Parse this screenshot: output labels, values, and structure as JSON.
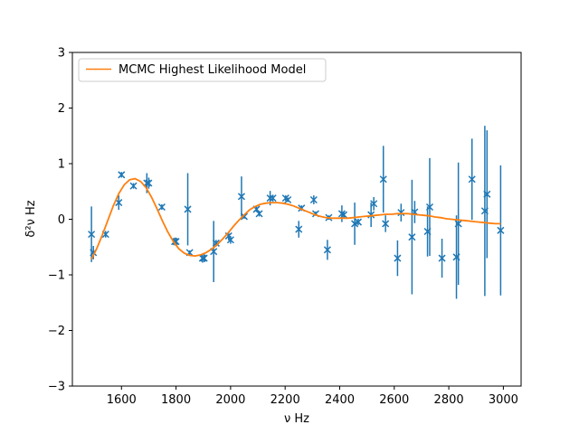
{
  "chart_data": {
    "type": "scatter",
    "title": "",
    "xlabel": "ν Hz",
    "ylabel": "δ²ν Hz",
    "xlim": [
      1420,
      3065
    ],
    "ylim": [
      -3,
      3
    ],
    "x_ticks": [
      1600,
      1800,
      2000,
      2200,
      2400,
      2600,
      2800,
      3000
    ],
    "y_ticks": [
      -3,
      -2,
      -1,
      0,
      1,
      2,
      3
    ],
    "grid": false,
    "legend_position": "upper-left",
    "colors": {
      "points": "#1f77b4",
      "model": "#ff7f0e"
    },
    "series": [
      {
        "kind": "errorbar",
        "points": [
          {
            "x": 1490,
            "y": -0.27,
            "err": 0.5
          },
          {
            "x": 1497,
            "y": -0.6,
            "err": 0.12
          },
          {
            "x": 1542,
            "y": -0.27,
            "err": 0.06
          },
          {
            "x": 1590,
            "y": 0.3,
            "err": 0.13
          },
          {
            "x": 1600,
            "y": 0.8,
            "err": 0.05
          },
          {
            "x": 1644,
            "y": 0.6,
            "err": 0.05
          },
          {
            "x": 1693,
            "y": 0.65,
            "err": 0.18
          },
          {
            "x": 1700,
            "y": 0.65,
            "err": 0.1
          },
          {
            "x": 1748,
            "y": 0.22,
            "err": 0.05
          },
          {
            "x": 1795,
            "y": -0.4,
            "err": 0.07
          },
          {
            "x": 1800,
            "y": -0.4,
            "err": 0.07
          },
          {
            "x": 1843,
            "y": 0.18,
            "err": 0.65
          },
          {
            "x": 1850,
            "y": -0.6,
            "err": 0.04
          },
          {
            "x": 1897,
            "y": -0.7,
            "err": 0.08
          },
          {
            "x": 1903,
            "y": -0.7,
            "err": 0.07
          },
          {
            "x": 1938,
            "y": -0.58,
            "err": 0.55
          },
          {
            "x": 1947,
            "y": -0.43,
            "err": 0.06
          },
          {
            "x": 1993,
            "y": -0.3,
            "err": 0.08
          },
          {
            "x": 2000,
            "y": -0.37,
            "err": 0.07
          },
          {
            "x": 2040,
            "y": 0.41,
            "err": 0.36
          },
          {
            "x": 2050,
            "y": 0.05,
            "err": 0.04
          },
          {
            "x": 2095,
            "y": 0.18,
            "err": 0.05
          },
          {
            "x": 2105,
            "y": 0.1,
            "err": 0.05
          },
          {
            "x": 2145,
            "y": 0.38,
            "err": 0.13
          },
          {
            "x": 2155,
            "y": 0.38,
            "err": 0.06
          },
          {
            "x": 2202,
            "y": 0.38,
            "err": 0.05
          },
          {
            "x": 2210,
            "y": 0.35,
            "err": 0.04
          },
          {
            "x": 2250,
            "y": -0.18,
            "err": 0.15
          },
          {
            "x": 2260,
            "y": 0.2,
            "err": 0.05
          },
          {
            "x": 2305,
            "y": 0.35,
            "err": 0.08
          },
          {
            "x": 2312,
            "y": 0.1,
            "err": 0.04
          },
          {
            "x": 2355,
            "y": -0.55,
            "err": 0.18
          },
          {
            "x": 2360,
            "y": 0.03,
            "err": 0.04
          },
          {
            "x": 2408,
            "y": 0.1,
            "err": 0.15
          },
          {
            "x": 2415,
            "y": 0.08,
            "err": 0.06
          },
          {
            "x": 2455,
            "y": -0.08,
            "err": 0.38
          },
          {
            "x": 2468,
            "y": -0.05,
            "err": 0.06
          },
          {
            "x": 2515,
            "y": 0.08,
            "err": 0.22
          },
          {
            "x": 2525,
            "y": 0.28,
            "err": 0.12
          },
          {
            "x": 2560,
            "y": 0.72,
            "err": 0.6
          },
          {
            "x": 2568,
            "y": -0.08,
            "err": 0.15
          },
          {
            "x": 2612,
            "y": -0.7,
            "err": 0.32
          },
          {
            "x": 2625,
            "y": 0.12,
            "err": 0.16
          },
          {
            "x": 2665,
            "y": -0.32,
            "err": 1.03
          },
          {
            "x": 2675,
            "y": 0.13,
            "err": 0.2
          },
          {
            "x": 2722,
            "y": -0.22,
            "err": 0.45
          },
          {
            "x": 2730,
            "y": 0.22,
            "err": 0.88
          },
          {
            "x": 2775,
            "y": -0.7,
            "err": 0.35
          },
          {
            "x": 2828,
            "y": -0.68,
            "err": 0.75
          },
          {
            "x": 2835,
            "y": -0.08,
            "err": 1.1
          },
          {
            "x": 2885,
            "y": 0.72,
            "err": 0.73
          },
          {
            "x": 2932,
            "y": 0.15,
            "err": 1.53
          },
          {
            "x": 2940,
            "y": 0.45,
            "err": 1.15
          },
          {
            "x": 2990,
            "y": -0.2,
            "err": 1.17
          }
        ]
      },
      {
        "name": "MCMC Highest Likelihood Model",
        "kind": "line",
        "x": [
          1490,
          1510,
          1530,
          1550,
          1570,
          1590,
          1610,
          1630,
          1650,
          1670,
          1690,
          1710,
          1730,
          1750,
          1770,
          1790,
          1810,
          1830,
          1850,
          1870,
          1890,
          1910,
          1930,
          1950,
          1970,
          1990,
          2010,
          2030,
          2050,
          2070,
          2090,
          2110,
          2130,
          2150,
          2170,
          2190,
          2210,
          2230,
          2250,
          2270,
          2290,
          2310,
          2330,
          2350,
          2370,
          2390,
          2410,
          2430,
          2450,
          2470,
          2490,
          2510,
          2530,
          2550,
          2570,
          2590,
          2610,
          2630,
          2650,
          2670,
          2690,
          2710,
          2730,
          2750,
          2770,
          2790,
          2810,
          2830,
          2850,
          2870,
          2890,
          2910,
          2930,
          2950,
          2970,
          2990
        ],
        "y": [
          -0.72,
          -0.52,
          -0.28,
          -0.02,
          0.24,
          0.46,
          0.62,
          0.71,
          0.73,
          0.68,
          0.57,
          0.4,
          0.19,
          -0.03,
          -0.23,
          -0.4,
          -0.53,
          -0.61,
          -0.65,
          -0.66,
          -0.64,
          -0.6,
          -0.54,
          -0.46,
          -0.36,
          -0.25,
          -0.13,
          -0.02,
          0.08,
          0.17,
          0.23,
          0.27,
          0.29,
          0.3,
          0.3,
          0.29,
          0.27,
          0.24,
          0.2,
          0.16,
          0.12,
          0.08,
          0.05,
          0.03,
          0.02,
          0.02,
          0.02,
          0.02,
          0.03,
          0.04,
          0.05,
          0.06,
          0.07,
          0.08,
          0.09,
          0.09,
          0.1,
          0.1,
          0.1,
          0.09,
          0.08,
          0.07,
          0.06,
          0.04,
          0.03,
          0.01,
          0.0,
          -0.01,
          -0.02,
          -0.03,
          -0.04,
          -0.05,
          -0.06,
          -0.07,
          -0.08,
          -0.08
        ]
      }
    ]
  }
}
